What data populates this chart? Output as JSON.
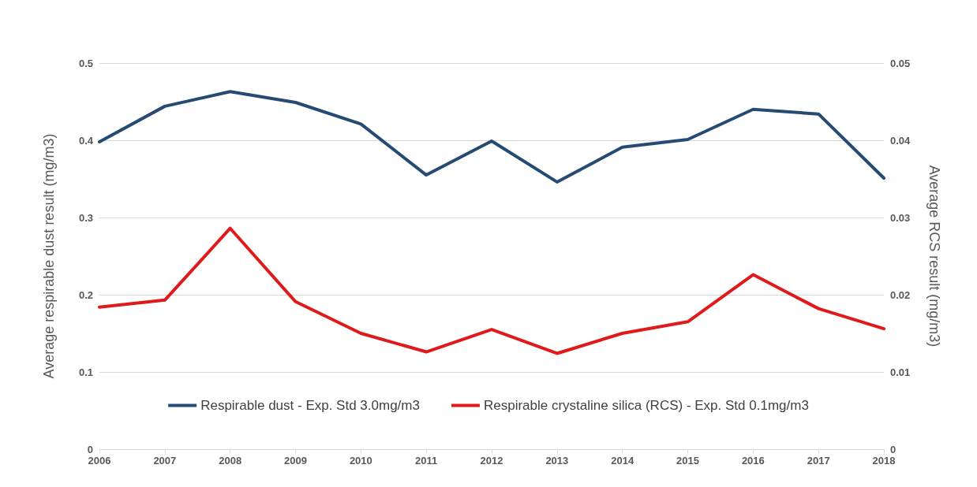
{
  "chart_data": {
    "type": "line",
    "ylabel": "Average respirable dust result (mg/m3)",
    "y2label": "Average RCS result (mg/m3)",
    "categories": [
      "2006",
      "2007",
      "2008",
      "2009",
      "2010",
      "2011",
      "2012",
      "2013",
      "2014",
      "2015",
      "2016",
      "2017",
      "2018"
    ],
    "series": [
      {
        "name": "Respirable dust - Exp. Std 3.0mg/m3",
        "color": "#264b73",
        "values": [
          0.398,
          0.444,
          0.463,
          0.449,
          0.421,
          0.355,
          0.399,
          0.346,
          0.391,
          0.401,
          0.44,
          0.434,
          0.351
        ]
      },
      {
        "name": "Respirable crystaline silica (RCS) - Exp. Std 0.1mg/m3",
        "color": "#e01a1a",
        "axis": "y2",
        "values": [
          0.0184,
          0.0193,
          0.0286,
          0.0191,
          0.015,
          0.0126,
          0.0155,
          0.0124,
          0.015,
          0.0165,
          0.0226,
          0.0182,
          0.0156
        ]
      }
    ],
    "ylim": [
      0,
      0.5
    ],
    "yticks": [
      0,
      0.1,
      0.2,
      0.3,
      0.4,
      0.5
    ],
    "y2lim": [
      0,
      0.05
    ],
    "y2ticks": [
      0,
      0.01,
      0.02,
      0.03,
      0.04,
      0.05
    ],
    "grid": "y",
    "legend": "bottom",
    "marker": "none",
    "line_style": "solid"
  }
}
